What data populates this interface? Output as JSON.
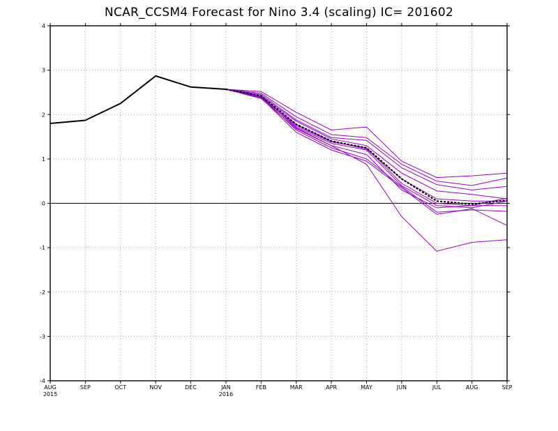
{
  "chart_data": {
    "type": "line",
    "title": "NCAR_CCSM4 Forecast for Nino 3.4 (scaling)  IC= 201602",
    "x": [
      "AUG",
      "SEP",
      "OCT",
      "NOV",
      "DEC",
      "JAN",
      "FEB",
      "MAR",
      "APR",
      "MAY",
      "JUN",
      "JUL",
      "AUG",
      "SEP"
    ],
    "x_sublabels": [
      "2015",
      "",
      "",
      "",
      "",
      "2016",
      "",
      "",
      "",
      "",
      "",
      "",
      "",
      ""
    ],
    "ylim": [
      -4,
      4
    ],
    "yticks": [
      -4,
      -3,
      -2,
      -1,
      0,
      1,
      2,
      3,
      4
    ],
    "grid": true,
    "zero_line": true,
    "colors": {
      "observed": "#000000",
      "members": "#9900cc",
      "mean": "#000000"
    },
    "observed": [
      1.8,
      1.87,
      2.25,
      2.87,
      2.62,
      2.57
    ],
    "members": [
      [
        2.57,
        2.52,
        2.05,
        1.65,
        1.72,
        0.95,
        0.58,
        0.62,
        0.68
      ],
      [
        2.57,
        2.48,
        1.95,
        1.55,
        1.48,
        0.88,
        0.5,
        0.4,
        0.57
      ],
      [
        2.57,
        2.45,
        1.88,
        1.48,
        1.42,
        0.8,
        0.42,
        0.3,
        0.38
      ],
      [
        2.57,
        2.42,
        1.85,
        1.45,
        1.3,
        0.68,
        0.28,
        0.2,
        0.1
      ],
      [
        2.57,
        2.4,
        1.78,
        1.4,
        1.22,
        0.55,
        0.1,
        0.05,
        0.05
      ],
      [
        2.57,
        2.38,
        1.75,
        1.38,
        1.25,
        0.45,
        0.0,
        -0.05,
        0.12
      ],
      [
        2.57,
        2.4,
        1.72,
        1.35,
        1.2,
        0.4,
        -0.05,
        -0.1,
        0.05
      ],
      [
        2.57,
        2.36,
        1.68,
        1.3,
        1.1,
        0.3,
        -0.1,
        -0.05,
        -0.05
      ],
      [
        2.57,
        2.4,
        1.65,
        1.25,
        1.0,
        0.38,
        -0.2,
        -0.15,
        -0.18
      ],
      [
        2.57,
        2.38,
        1.6,
        1.2,
        0.95,
        0.35,
        -0.25,
        -0.12,
        -0.5
      ],
      [
        2.57,
        2.42,
        1.7,
        1.3,
        0.88,
        -0.3,
        -1.08,
        -0.88,
        -0.82
      ]
    ],
    "ensemble_mean": [
      2.57,
      2.42,
      1.78,
      1.4,
      1.25,
      0.55,
      0.05,
      -0.02,
      0.07
    ]
  }
}
